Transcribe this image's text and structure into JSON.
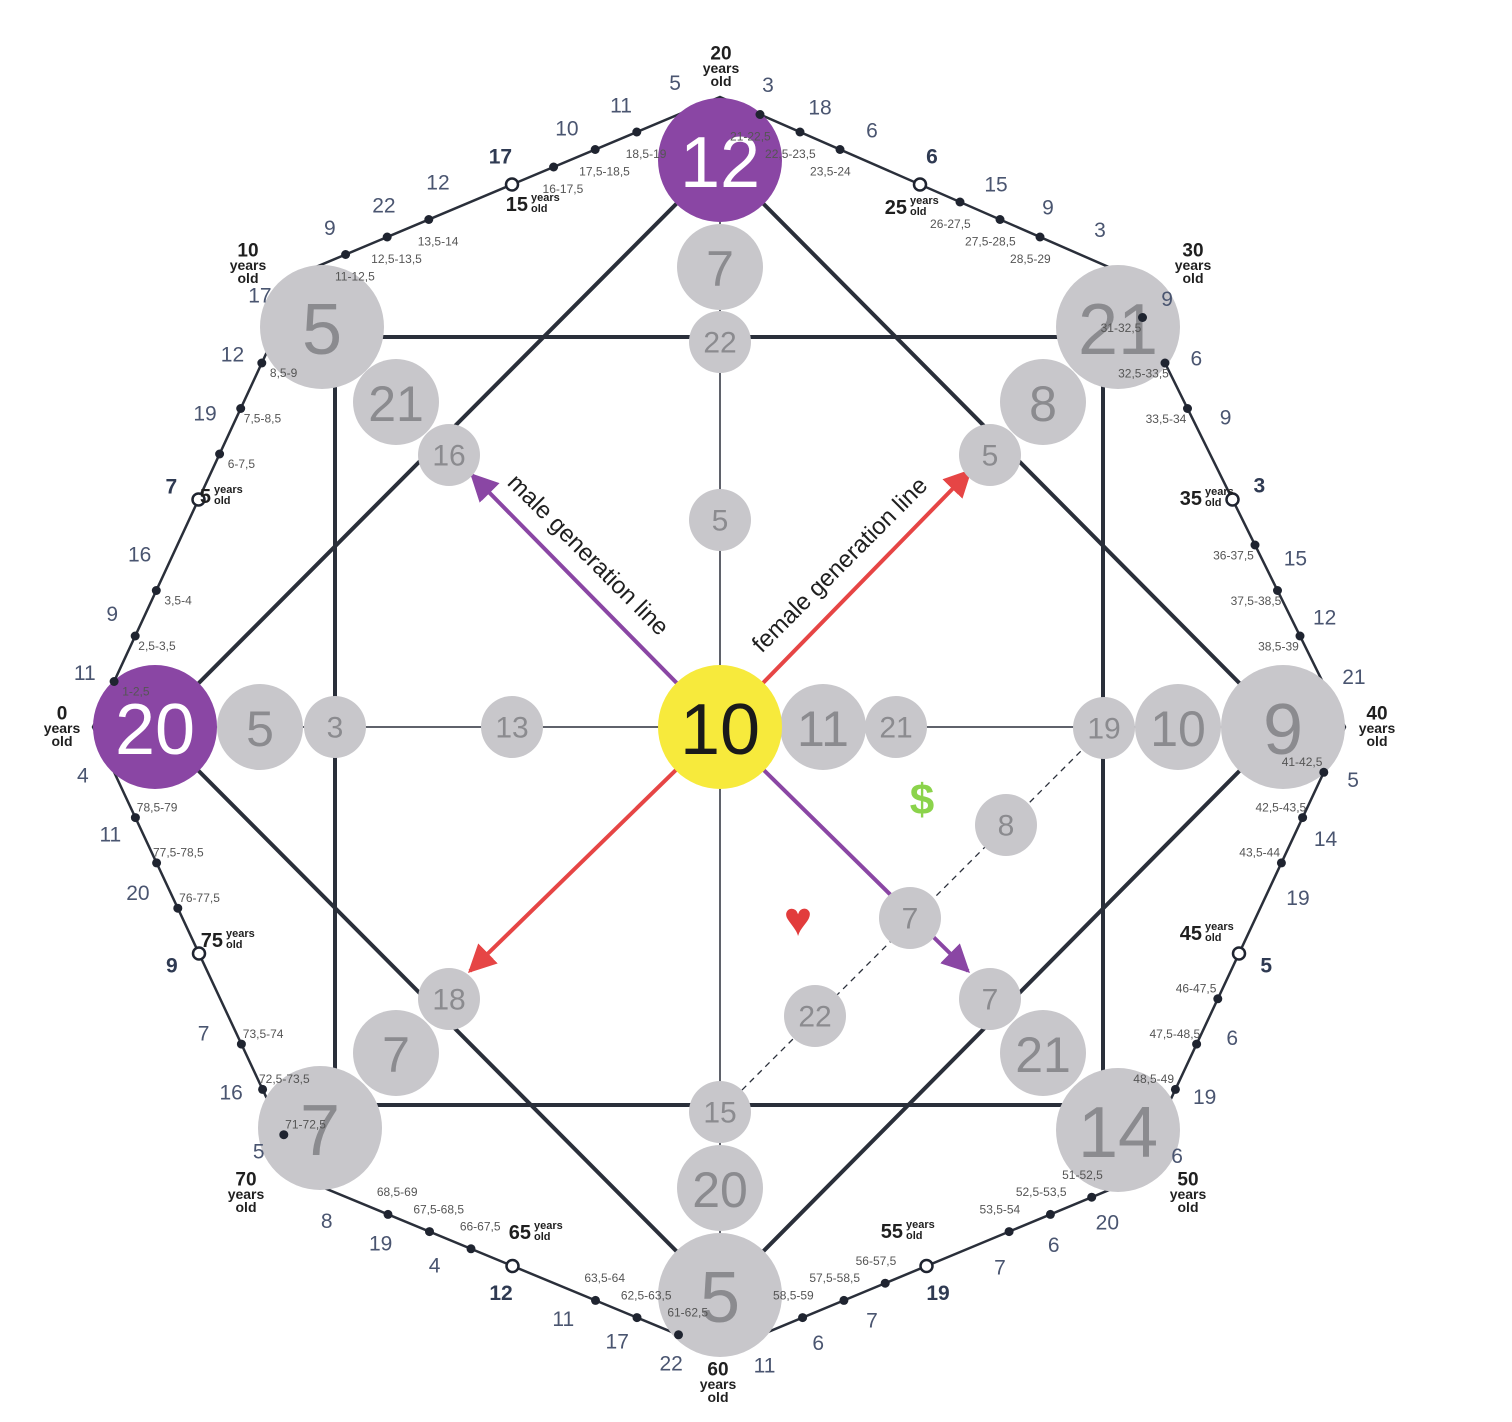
{
  "center": {
    "value": "10",
    "color": "#f7ea3c"
  },
  "axes": {
    "left": "20",
    "top": "12",
    "right": "9",
    "bottom": "5",
    "purple_color": "#8a46a4",
    "gray_color": "#c8c7cb"
  },
  "corners": {
    "top_left": "5",
    "top_right": "21",
    "bottom_right": "14",
    "bottom_left": "7"
  },
  "inner_top": [
    "7",
    "22",
    "5"
  ],
  "inner_left": [
    "5",
    "3",
    "13"
  ],
  "inner_right": [
    "11",
    "21",
    "19",
    "10"
  ],
  "inner_bottom": [
    "15",
    "20"
  ],
  "diag_top_left": [
    "21",
    "16"
  ],
  "diag_top_right": [
    "8",
    "5"
  ],
  "diag_bottom_left": [
    "7",
    "18"
  ],
  "diag_bottom_right": [
    "21",
    "7"
  ],
  "money_line": [
    "8",
    "7",
    "22"
  ],
  "labels": {
    "male_line": "male generation line",
    "female_line": "female generation line",
    "dollar": "$",
    "heart": "♥"
  },
  "age_labels": {
    "a0": [
      "0",
      "years",
      "old"
    ],
    "a10": [
      "10",
      "years",
      "old"
    ],
    "a20": [
      "20",
      "years",
      "old"
    ],
    "a30": [
      "30",
      "years",
      "old"
    ],
    "a40": [
      "40",
      "years",
      "old"
    ],
    "a50": [
      "50",
      "years",
      "old"
    ],
    "a60": [
      "60",
      "years",
      "old"
    ],
    "a70": [
      "70",
      "years",
      "old"
    ]
  },
  "mid_age_labels": {
    "m5": [
      "5",
      "years",
      "old"
    ],
    "m15": [
      "15",
      "years",
      "old"
    ],
    "m25": [
      "25",
      "years",
      "old"
    ],
    "m35": [
      "35",
      "years",
      "old"
    ],
    "m45": [
      "45",
      "years",
      "old"
    ],
    "m55": [
      "55",
      "years",
      "old"
    ],
    "m65": [
      "65",
      "years",
      "old"
    ],
    "m75": [
      "75",
      "years",
      "old"
    ]
  },
  "outer_numbers": {
    "s0": [
      "11",
      "9",
      "16",
      "7",
      "19",
      "12",
      "17"
    ],
    "s1": [
      "9",
      "22",
      "12",
      "17",
      "10",
      "11",
      "5"
    ],
    "s2": [
      "3",
      "18",
      "6",
      "6",
      "15",
      "9",
      "3"
    ],
    "s3": [
      "9",
      "6",
      "9",
      "3",
      "15",
      "12",
      "21"
    ],
    "s4": [
      "5",
      "14",
      "19",
      "5",
      "6",
      "19",
      "6"
    ],
    "s5": [
      "20",
      "6",
      "7",
      "19",
      "7",
      "6",
      "11"
    ],
    "s6": [
      "22",
      "17",
      "11",
      "12",
      "4",
      "19",
      "8"
    ],
    "s7": [
      "5",
      "16",
      "7",
      "9",
      "20",
      "11",
      "4"
    ]
  },
  "tick_ranges": {
    "s0": [
      "1-2,5",
      "2,5-3,5",
      "3,5-4",
      "6-7,5",
      "7,5-8,5",
      "8,5-9"
    ],
    "s1": [
      "11-12,5",
      "12,5-13,5",
      "13,5-14",
      "16-17,5",
      "17,5-18,5",
      "18,5-19"
    ],
    "s2": [
      "21-22,5",
      "22,5-23,5",
      "23,5-24",
      "26-27,5",
      "27,5-28,5",
      "28,5-29"
    ],
    "s3": [
      "31-32,5",
      "32,5-33,5",
      "33,5-34",
      "36-37,5",
      "37,5-38,5",
      "38,5-39"
    ],
    "s4": [
      "41-42,5",
      "42,5-43,5",
      "43,5-44",
      "46-47,5",
      "47,5-48,5",
      "48,5-49"
    ],
    "s5": [
      "51-52,5",
      "52,5-53,5",
      "53,5-54",
      "56-57,5",
      "57,5-58,5",
      "58,5-59"
    ],
    "s6": [
      "61-62,5",
      "62,5-63,5",
      "63,5-64",
      "66-67,5",
      "67,5-68,5",
      "68,5-69"
    ],
    "s7": [
      "71-72,5",
      "72,5-73,5",
      "73,5-74",
      "76-77,5",
      "77,5-78,5",
      "78,5-79"
    ]
  }
}
